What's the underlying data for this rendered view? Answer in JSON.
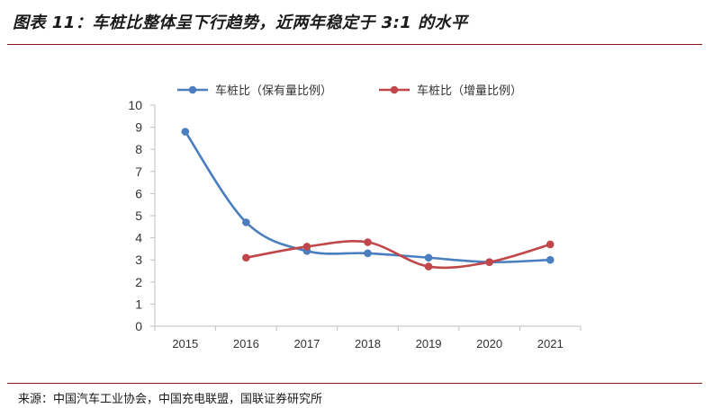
{
  "header": {
    "title": "图表 11：车桩比整体呈下行趋势，近两年稳定于 3:1 的水平"
  },
  "footer": {
    "source": "来源：中国汽车工业协会，中国充电联盟，国联证券研究所"
  },
  "colors": {
    "series_1": "#4a7ebf",
    "series_2": "#c0464a",
    "rule": "#8b1a1a"
  },
  "chart_data": {
    "type": "line",
    "title": "",
    "xlabel": "",
    "ylabel": "",
    "categories": [
      "2015",
      "2016",
      "2017",
      "2018",
      "2019",
      "2020",
      "2021"
    ],
    "yticks": [
      "0",
      "1",
      "2",
      "3",
      "4",
      "5",
      "6",
      "7",
      "8",
      "9",
      "10"
    ],
    "ylim": [
      0,
      10
    ],
    "grid": false,
    "legend_position": "top-center",
    "smooth": true,
    "series": [
      {
        "name": "车桩比（保有量比例）",
        "color": "#4a7ebf",
        "values": [
          8.8,
          4.7,
          3.4,
          3.3,
          3.1,
          2.9,
          3.0
        ]
      },
      {
        "name": "车桩比（增量比例）",
        "color": "#c0464a",
        "values": [
          null,
          3.1,
          3.6,
          3.8,
          2.7,
          2.9,
          3.7
        ]
      }
    ]
  }
}
